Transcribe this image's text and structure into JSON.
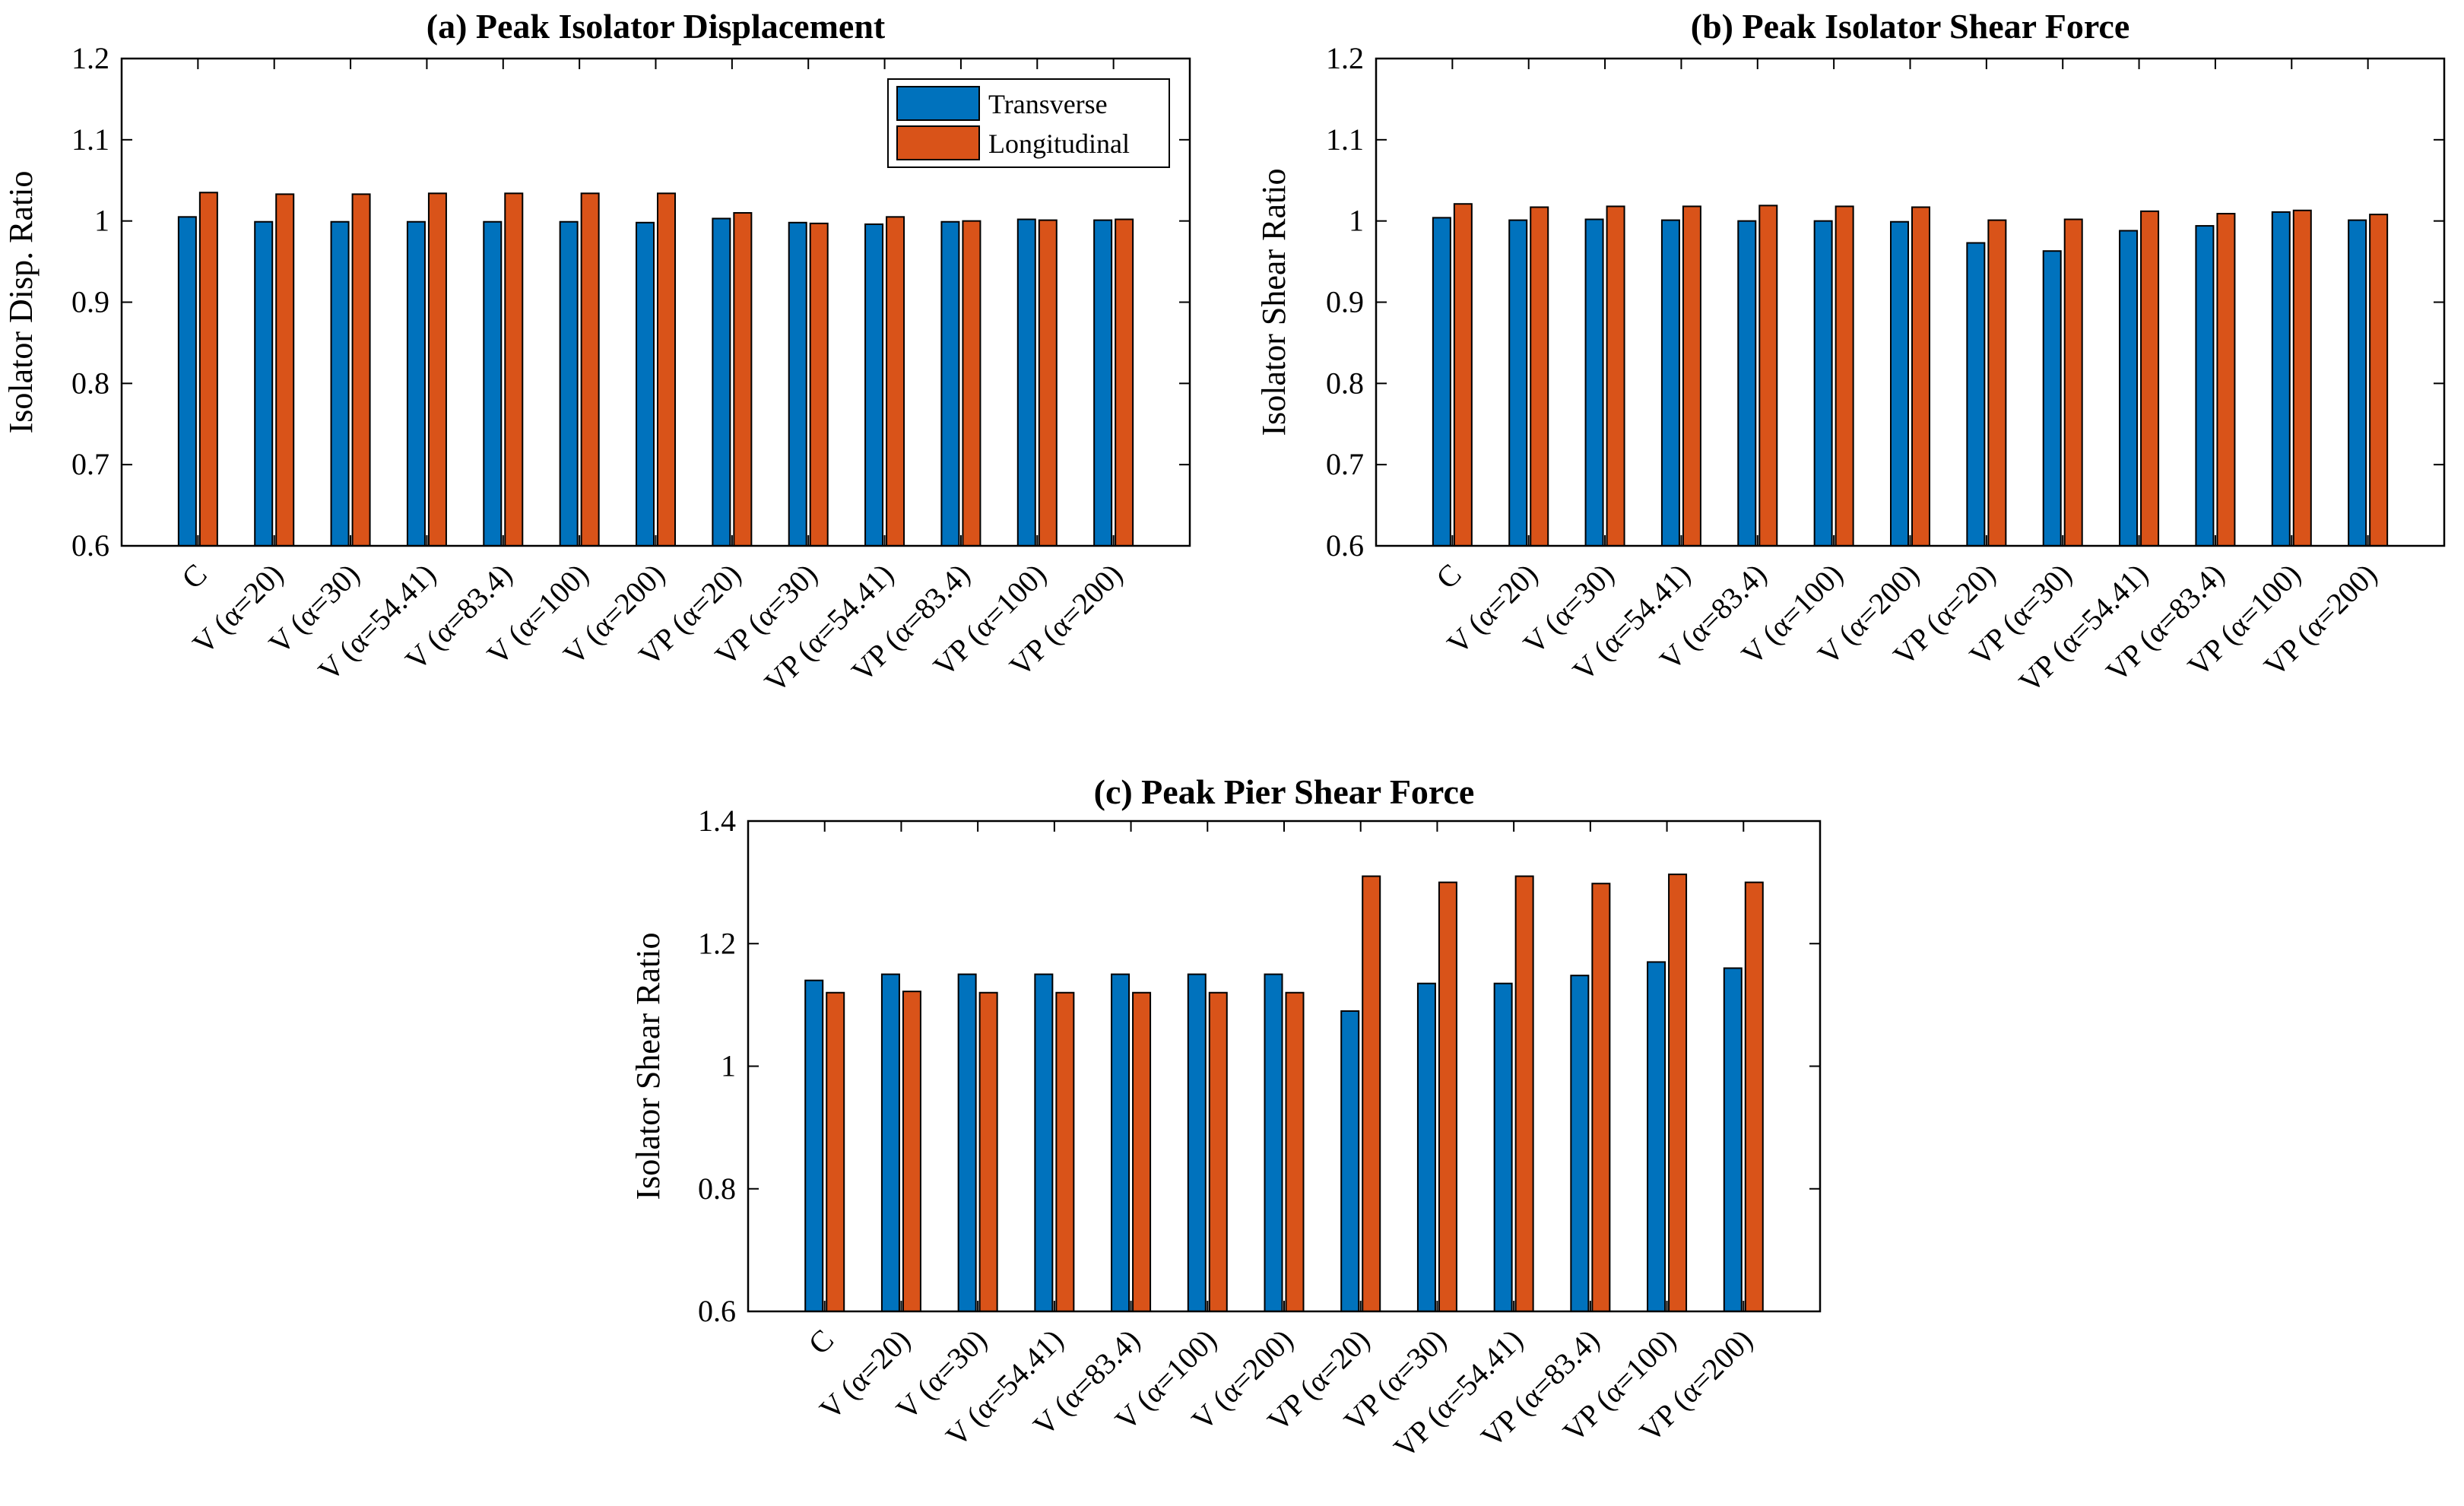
{
  "colors": {
    "transverse": "#0072BD",
    "longitudinal": "#D95319",
    "axis": "#000000"
  },
  "chart_data": [
    {
      "type": "bar",
      "title": "(a) Peak  Isolator Displacement",
      "xlabel": "",
      "ylabel": "Isolator Disp. Ratio",
      "ylim": [
        0.6,
        1.2
      ],
      "yticks": [
        "0.6",
        "0.7",
        "0.8",
        "0.9",
        "1",
        "1.1",
        "1.2"
      ],
      "legend": [
        "Transverse",
        "Longitudinal"
      ],
      "legend_position": "top-right",
      "categories": [
        "C",
        "V (α=20)",
        "V (α=30)",
        "V (α=54.41)",
        "V (α=83.4)",
        "V (α=100)",
        "V (α=200)",
        "VP (α=20)",
        "VP (α=30)",
        "VP (α=54.41)",
        "VP (α=83.4)",
        "VP (α=100)",
        "VP (α=200)"
      ],
      "series": [
        {
          "name": "Transverse",
          "values": [
            1.005,
            0.999,
            0.999,
            0.999,
            0.999,
            0.999,
            0.998,
            1.003,
            0.998,
            0.996,
            0.999,
            1.002,
            1.001
          ]
        },
        {
          "name": "Longitudinal",
          "values": [
            1.035,
            1.033,
            1.033,
            1.034,
            1.034,
            1.034,
            1.034,
            1.01,
            0.997,
            1.005,
            1.0,
            1.001,
            1.002
          ]
        }
      ]
    },
    {
      "type": "bar",
      "title": "(b) Peak Isolator Shear Force",
      "xlabel": "",
      "ylabel": "Isolator Shear Ratio",
      "ylim": [
        0.6,
        1.2
      ],
      "yticks": [
        "0.6",
        "0.7",
        "0.8",
        "0.9",
        "1",
        "1.1",
        "1.2"
      ],
      "categories": [
        "C",
        "V (α=20)",
        "V (α=30)",
        "V (α=54.41)",
        "V (α=83.4)",
        "V (α=100)",
        "V (α=200)",
        "VP (α=20)",
        "VP (α=30)",
        "VP (α=54.41)",
        "VP (α=83.4)",
        "VP (α=100)",
        "VP (α=200)"
      ],
      "series": [
        {
          "name": "Transverse",
          "values": [
            1.004,
            1.001,
            1.002,
            1.001,
            1.0,
            1.0,
            0.999,
            0.973,
            0.963,
            0.988,
            0.994,
            1.011,
            1.001
          ]
        },
        {
          "name": "Longitudinal",
          "values": [
            1.021,
            1.017,
            1.018,
            1.018,
            1.019,
            1.018,
            1.017,
            1.001,
            1.002,
            1.012,
            1.009,
            1.013,
            1.008
          ]
        }
      ]
    },
    {
      "type": "bar",
      "title": "(c) Peak Pier Shear Force",
      "xlabel": "",
      "ylabel": "Isolator Shear Ratio",
      "ylim": [
        0.6,
        1.4
      ],
      "yticks": [
        "0.6",
        "0.8",
        "1",
        "1.2",
        "1.4"
      ],
      "categories": [
        "C",
        "V (α=20)",
        "V (α=30)",
        "V (α=54.41)",
        "V (α=83.4)",
        "V (α=100)",
        "V (α=200)",
        "VP (α=20)",
        "VP (α=30)",
        "VP (α=54.41)",
        "VP (α=83.4)",
        "VP (α=100)",
        "VP (α=200)"
      ],
      "series": [
        {
          "name": "Transverse",
          "values": [
            1.14,
            1.15,
            1.15,
            1.15,
            1.15,
            1.15,
            1.15,
            1.09,
            1.135,
            1.135,
            1.148,
            1.17,
            1.16
          ]
        },
        {
          "name": "Longitudinal",
          "values": [
            1.12,
            1.122,
            1.12,
            1.12,
            1.12,
            1.12,
            1.12,
            1.31,
            1.3,
            1.31,
            1.298,
            1.313,
            1.3
          ]
        }
      ]
    }
  ]
}
